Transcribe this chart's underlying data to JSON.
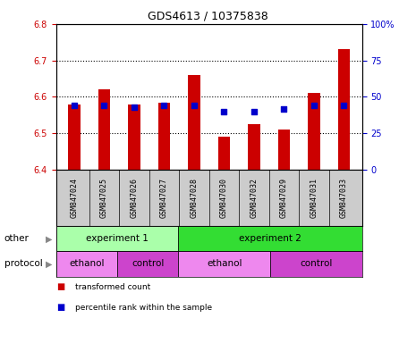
{
  "title": "GDS4613 / 10375838",
  "samples": [
    "GSM847024",
    "GSM847025",
    "GSM847026",
    "GSM847027",
    "GSM847028",
    "GSM847030",
    "GSM847032",
    "GSM847029",
    "GSM847031",
    "GSM847033"
  ],
  "transformed_count": [
    6.58,
    6.62,
    6.58,
    6.585,
    6.66,
    6.49,
    6.525,
    6.51,
    6.61,
    6.73
  ],
  "percentile_rank": [
    44,
    44,
    43,
    44,
    44,
    40,
    40,
    42,
    44,
    44
  ],
  "ylim_left": [
    6.4,
    6.8
  ],
  "ylim_right": [
    0,
    100
  ],
  "yticks_left": [
    6.4,
    6.5,
    6.6,
    6.7,
    6.8
  ],
  "yticks_right": [
    0,
    25,
    50,
    75,
    100
  ],
  "ytick_labels_right": [
    "0",
    "25",
    "50",
    "75",
    "100%"
  ],
  "bar_color": "#cc0000",
  "dot_color": "#0000cc",
  "bar_bottom": 6.4,
  "bar_width": 0.4,
  "groups_other": [
    {
      "label": "experiment 1",
      "start": 0,
      "end": 4,
      "color": "#aaffaa"
    },
    {
      "label": "experiment 2",
      "start": 4,
      "end": 10,
      "color": "#33dd33"
    }
  ],
  "groups_protocol": [
    {
      "label": "ethanol",
      "start": 0,
      "end": 2,
      "color": "#ee88ee"
    },
    {
      "label": "control",
      "start": 2,
      "end": 4,
      "color": "#cc44cc"
    },
    {
      "label": "ethanol",
      "start": 4,
      "end": 7,
      "color": "#ee88ee"
    },
    {
      "label": "control",
      "start": 7,
      "end": 10,
      "color": "#cc44cc"
    }
  ],
  "legend_items": [
    {
      "label": "transformed count",
      "color": "#cc0000"
    },
    {
      "label": "percentile rank within the sample",
      "color": "#0000cc"
    }
  ],
  "xtick_bg_color": "#cccccc",
  "background_color": "#ffffff",
  "grid_color": "#000000",
  "tick_label_color_left": "#cc0000",
  "tick_label_color_right": "#0000cc",
  "label_fontsize": 7,
  "title_fontsize": 9
}
